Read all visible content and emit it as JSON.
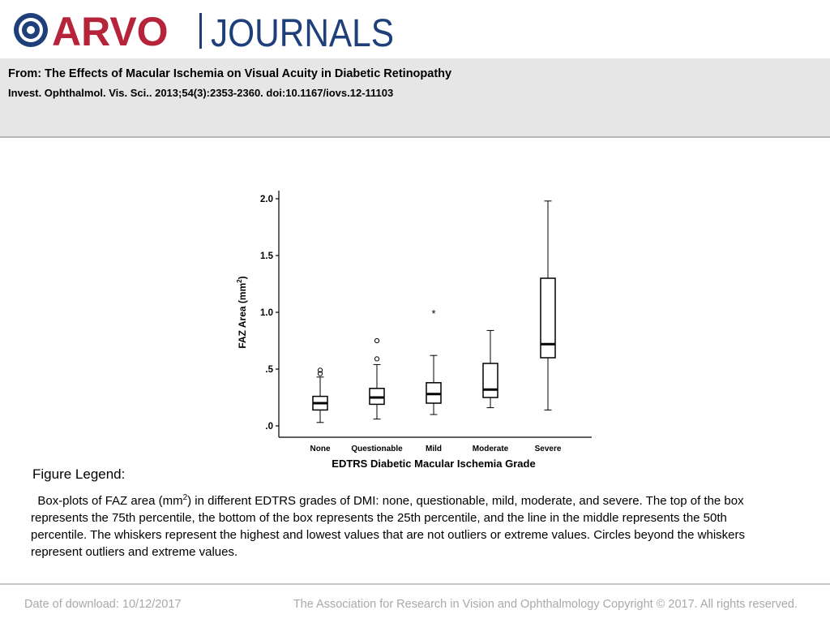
{
  "header": {
    "logo_primary": "ARVO",
    "logo_secondary": "JOURNALS",
    "brand_color": "#b5243a",
    "brand_secondary_color": "#1f3f7a"
  },
  "article": {
    "title": "From: The Effects of Macular Ischemia on Visual Acuity in Diabetic Retinopathy",
    "citation": "Invest. Ophthalmol. Vis. Sci.. 2013;54(3):2353-2360. doi:10.1167/iovs.12-11103"
  },
  "chart_data": {
    "type": "boxplot",
    "title": "",
    "xlabel": "EDTRS Diabetic Macular Ischemia Grade",
    "ylabel_main": "FAZ Area (mm",
    "ylabel_sup": "2",
    "ylabel_close": ")",
    "ylim": [
      0,
      2.0
    ],
    "yticks": [
      {
        "value": 0,
        "label": ".0"
      },
      {
        "value": 0.5,
        "label": ".5"
      },
      {
        "value": 1.0,
        "label": "1.0"
      },
      {
        "value": 1.5,
        "label": "1.5"
      },
      {
        "value": 2.0,
        "label": "2.0"
      }
    ],
    "categories": [
      "None",
      "Questionable",
      "Mild",
      "Moderate",
      "Severe"
    ],
    "boxes": [
      {
        "min": 0.03,
        "q1": 0.14,
        "median": 0.2,
        "q3": 0.26,
        "max": 0.43,
        "outliers": [
          0.46,
          0.49
        ],
        "extremes": []
      },
      {
        "min": 0.06,
        "q1": 0.19,
        "median": 0.25,
        "q3": 0.33,
        "max": 0.54,
        "outliers": [
          0.59,
          0.75
        ],
        "extremes": []
      },
      {
        "min": 0.1,
        "q1": 0.2,
        "median": 0.28,
        "q3": 0.38,
        "max": 0.62,
        "outliers": [],
        "extremes": [
          1.0
        ]
      },
      {
        "min": 0.16,
        "q1": 0.25,
        "median": 0.32,
        "q3": 0.55,
        "max": 0.84,
        "outliers": [],
        "extremes": []
      },
      {
        "min": 0.14,
        "q1": 0.6,
        "median": 0.72,
        "q3": 1.3,
        "max": 1.98,
        "outliers": [],
        "extremes": []
      }
    ],
    "extreme_symbol": "*"
  },
  "legend": {
    "heading": "Figure Legend:",
    "text_before": "Box-plots of FAZ area (mm",
    "text_sup": "2",
    "text_after": ") in different EDTRS grades of DMI: none, questionable, mild, moderate, and severe. The top of the box represents the 75th percentile, the bottom of the box represents the 25th percentile, and the line in the middle represents the 50th percentile. The whiskers represent the highest and lowest values that are not outliers or extreme values. Circles beyond the whiskers represent outliers and extreme values."
  },
  "footer": {
    "date": "Date of download:  10/12/2017",
    "copyright": "The Association for Research in Vision and Ophthalmology Copyright © 2017. All rights reserved."
  }
}
